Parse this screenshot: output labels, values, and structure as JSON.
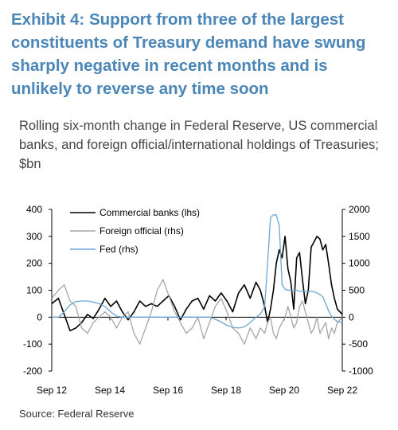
{
  "title": "Exhibit 4: Support from three of the largest constituents of Treasury demand have swung sharply negative in recent months and is unlikely to reverse any time soon",
  "subtitle": "Rolling six-month change in Federal Reserve, US commercial banks, and foreign official/international holdings of Treasuries; $bn",
  "source": "Source: Federal Reserve",
  "colors": {
    "commercial_banks": "#000000",
    "foreign_official": "#a6a6a6",
    "fed": "#6aa7d9",
    "title": "#4a86b7"
  },
  "chart_data": {
    "type": "line",
    "legend_position": "top-left",
    "grid": false,
    "x_ticks": [
      "Sep 12",
      "Sep 14",
      "Sep 16",
      "Sep 18",
      "Sep 20",
      "Sep 22"
    ],
    "x_range": [
      2012.67,
      2022.67
    ],
    "y_left": {
      "range": [
        -200,
        400
      ],
      "ticks": [
        -200,
        -100,
        0,
        100,
        200,
        300,
        400
      ]
    },
    "y_right": {
      "range": [
        -1000,
        2000
      ],
      "ticks": [
        -1000,
        -500,
        0,
        500,
        1000,
        1500,
        2000
      ]
    },
    "series": [
      {
        "name": "Commercial banks (lhs)",
        "axis": "left",
        "color": "#000000",
        "x": [
          2012.67,
          2012.9,
          2013.1,
          2013.3,
          2013.5,
          2013.7,
          2013.9,
          2014.1,
          2014.3,
          2014.5,
          2014.7,
          2014.9,
          2015.1,
          2015.3,
          2015.5,
          2015.7,
          2015.9,
          2016.1,
          2016.3,
          2016.5,
          2016.7,
          2016.9,
          2017.1,
          2017.3,
          2017.5,
          2017.7,
          2017.9,
          2018.1,
          2018.3,
          2018.5,
          2018.7,
          2018.9,
          2019.1,
          2019.3,
          2019.5,
          2019.7,
          2019.85,
          2020.0,
          2020.1,
          2020.2,
          2020.3,
          2020.4,
          2020.5,
          2020.6,
          2020.7,
          2020.8,
          2020.9,
          2021.0,
          2021.1,
          2021.2,
          2021.3,
          2021.4,
          2021.5,
          2021.6,
          2021.7,
          2021.8,
          2021.9,
          2022.0,
          2022.1,
          2022.2,
          2022.3,
          2022.4,
          2022.5,
          2022.67
        ],
        "values": [
          50,
          70,
          10,
          -50,
          -40,
          -20,
          10,
          -5,
          30,
          70,
          40,
          60,
          20,
          -10,
          20,
          60,
          40,
          50,
          40,
          60,
          80,
          40,
          -10,
          30,
          60,
          70,
          30,
          80,
          60,
          90,
          60,
          20,
          90,
          120,
          70,
          130,
          100,
          40,
          -20,
          30,
          100,
          200,
          250,
          220,
          300,
          180,
          130,
          30,
          220,
          240,
          140,
          50,
          100,
          260,
          280,
          300,
          290,
          250,
          270,
          200,
          120,
          70,
          30,
          10
        ]
      },
      {
        "name": "Foreign official (rhs)",
        "axis": "right",
        "color": "#a6a6a6",
        "x": [
          2012.67,
          2012.9,
          2013.1,
          2013.3,
          2013.5,
          2013.7,
          2013.9,
          2014.1,
          2014.3,
          2014.5,
          2014.7,
          2014.9,
          2015.1,
          2015.3,
          2015.5,
          2015.7,
          2015.9,
          2016.1,
          2016.3,
          2016.5,
          2016.7,
          2016.9,
          2017.1,
          2017.3,
          2017.5,
          2017.7,
          2017.9,
          2018.1,
          2018.3,
          2018.5,
          2018.7,
          2018.9,
          2019.1,
          2019.3,
          2019.5,
          2019.7,
          2019.85,
          2020.0,
          2020.1,
          2020.2,
          2020.3,
          2020.4,
          2020.5,
          2020.6,
          2020.7,
          2020.8,
          2020.9,
          2021.0,
          2021.1,
          2021.2,
          2021.3,
          2021.4,
          2021.5,
          2021.6,
          2021.7,
          2021.8,
          2021.9,
          2022.0,
          2022.1,
          2022.2,
          2022.3,
          2022.4,
          2022.5,
          2022.67
        ],
        "values": [
          350,
          500,
          600,
          300,
          200,
          -200,
          -300,
          -100,
          0,
          100,
          0,
          -200,
          0,
          100,
          -300,
          -500,
          -200,
          100,
          500,
          700,
          400,
          100,
          -100,
          -300,
          -200,
          0,
          -400,
          -100,
          200,
          350,
          100,
          -200,
          -300,
          -500,
          -200,
          -400,
          -200,
          -300,
          -100,
          0,
          -300,
          -400,
          -200,
          -100,
          0,
          200,
          0,
          -200,
          -100,
          200,
          300,
          100,
          -100,
          -300,
          -200,
          0,
          -300,
          -200,
          -100,
          -400,
          -200,
          -300,
          -100,
          0
        ]
      },
      {
        "name": "Fed (rhs)",
        "axis": "right",
        "color": "#6aa7d9",
        "x": [
          2012.67,
          2012.9,
          2013.1,
          2013.3,
          2013.5,
          2013.7,
          2013.9,
          2014.1,
          2014.3,
          2014.5,
          2014.7,
          2014.9,
          2015.1,
          2015.3,
          2015.5,
          2015.7,
          2015.9,
          2016.1,
          2016.3,
          2016.5,
          2016.7,
          2016.9,
          2017.1,
          2017.3,
          2017.5,
          2017.7,
          2017.9,
          2018.1,
          2018.3,
          2018.5,
          2018.7,
          2018.9,
          2019.1,
          2019.3,
          2019.5,
          2019.7,
          2019.85,
          2020.0,
          2020.1,
          2020.2,
          2020.3,
          2020.4,
          2020.5,
          2020.6,
          2020.7,
          2020.8,
          2020.9,
          2021.0,
          2021.1,
          2021.2,
          2021.3,
          2021.4,
          2021.5,
          2021.6,
          2021.7,
          2021.8,
          2021.9,
          2022.0,
          2022.1,
          2022.2,
          2022.3,
          2022.4,
          2022.5,
          2022.67
        ],
        "values": [
          0,
          0,
          100,
          230,
          290,
          300,
          300,
          280,
          250,
          200,
          100,
          20,
          0,
          0,
          0,
          0,
          0,
          0,
          0,
          0,
          0,
          0,
          0,
          0,
          0,
          0,
          0,
          0,
          -40,
          -90,
          -150,
          -190,
          -200,
          -180,
          -100,
          0,
          60,
          200,
          1000,
          1850,
          1900,
          1900,
          1700,
          600,
          520,
          500,
          500,
          500,
          500,
          480,
          480,
          480,
          480,
          480,
          470,
          450,
          420,
          380,
          250,
          120,
          20,
          -40,
          -80,
          -100
        ]
      }
    ]
  }
}
